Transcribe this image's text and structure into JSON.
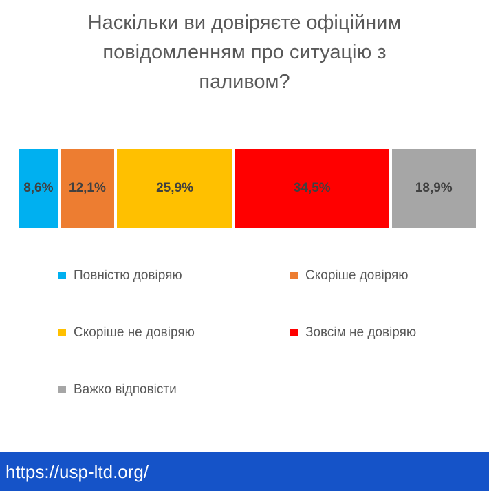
{
  "chart_data": {
    "type": "bar",
    "orientation": "horizontal-stacked-100",
    "title": "Наскільки ви довіряєте офіційним повідомленням про ситуацію з паливом?",
    "title_lines": [
      "Наскільки ви довіряєте офіційним",
      "повідомленням про ситуацію з",
      "паливом?"
    ],
    "series": [
      {
        "name": "Повністю довіряю",
        "value": 8.6,
        "label": "8,6%",
        "color": "#00B0F0"
      },
      {
        "name": "Скоріше довіряю",
        "value": 12.1,
        "label": "12,1%",
        "color": "#ED7D31"
      },
      {
        "name": "Скоріше не довіряю",
        "value": 25.9,
        "label": "25,9%",
        "color": "#FFC000"
      },
      {
        "name": "Зовсім не довіряю",
        "value": 34.5,
        "label": "34,5%",
        "color": "#FF0000"
      },
      {
        "name": "Важко відповісти",
        "value": 18.9,
        "label": "18,9%",
        "color": "#A6A6A6"
      }
    ],
    "legend_position": "bottom",
    "grid": false,
    "xlim": [
      0,
      100
    ]
  },
  "colors": {
    "title_text": "#595959",
    "bar_label_text": "#404040",
    "legend_text": "#595959",
    "footer_background": "#1553C8",
    "footer_text": "#ffffff"
  },
  "footer": {
    "url": "https://usp-ltd.org/"
  }
}
